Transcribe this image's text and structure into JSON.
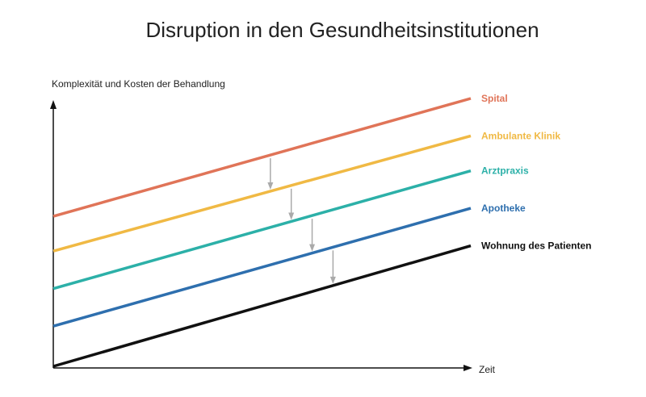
{
  "chart_data": {
    "type": "line",
    "title": "Disruption in den Gesundheitsinstitutionen",
    "xlabel": "Zeit",
    "ylabel": "Komplexität und Kosten der Behandlung",
    "grid": false,
    "x": [
      0,
      1
    ],
    "ylim": [
      0,
      1
    ],
    "series": [
      {
        "name": "Spital",
        "color": "#e07458",
        "values": [
          0.56,
          1.0
        ]
      },
      {
        "name": "Ambulante Klinik",
        "color": "#f0b944",
        "values": [
          0.43,
          0.86
        ]
      },
      {
        "name": "Arztpraxis",
        "color": "#2cb0a8",
        "values": [
          0.29,
          0.73
        ]
      },
      {
        "name": "Apotheke",
        "color": "#2e6fae",
        "values": [
          0.15,
          0.59
        ]
      },
      {
        "name": "Wohnung des Patienten",
        "color": "#111111",
        "values": [
          0.0,
          0.45
        ]
      }
    ],
    "arrows": [
      {
        "x": 0.52,
        "from_series": 0,
        "to_series": 1
      },
      {
        "x": 0.57,
        "from_series": 1,
        "to_series": 2
      },
      {
        "x": 0.62,
        "from_series": 2,
        "to_series": 3
      },
      {
        "x": 0.67,
        "from_series": 3,
        "to_series": 4
      }
    ],
    "arrow_color": "#aaaaaa",
    "axis_color": "#111111"
  }
}
